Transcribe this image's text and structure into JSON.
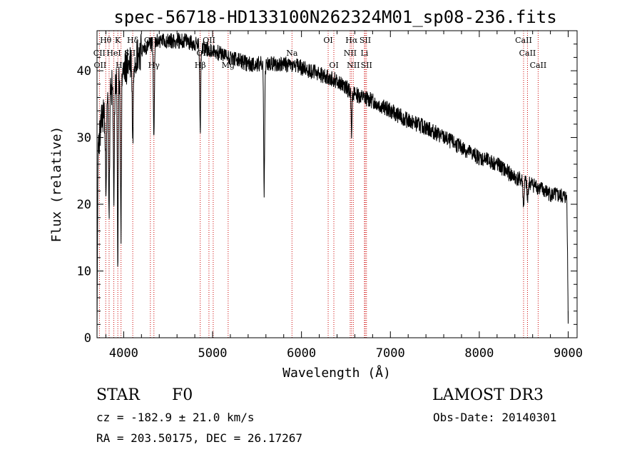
{
  "chart_data": {
    "type": "line",
    "title": "spec-56718-HD133100N262324M01_sp08-236.fits",
    "xlabel": "Wavelength (Å)",
    "ylabel": "Flux (relative)",
    "xlim": [
      3700,
      9100
    ],
    "ylim": [
      0,
      46
    ],
    "xticks": [
      4000,
      5000,
      6000,
      7000,
      8000,
      9000
    ],
    "xtick_labels": [
      "4000",
      "5000",
      "6000",
      "7000",
      "8000",
      "9000"
    ],
    "yticks": [
      0,
      10,
      20,
      30,
      40
    ],
    "ytick_labels": [
      "0",
      "10",
      "20",
      "30",
      "40"
    ],
    "continuum": [
      [
        3700,
        28
      ],
      [
        3800,
        36
      ],
      [
        3900,
        38
      ],
      [
        4000,
        40
      ],
      [
        4100,
        42
      ],
      [
        4200,
        43
      ],
      [
        4300,
        44
      ],
      [
        4400,
        44.5
      ],
      [
        4500,
        44.5
      ],
      [
        4600,
        44.5
      ],
      [
        4700,
        44.5
      ],
      [
        4800,
        44
      ],
      [
        4900,
        43.5
      ],
      [
        5000,
        43
      ],
      [
        5200,
        42
      ],
      [
        5400,
        41
      ],
      [
        5600,
        41
      ],
      [
        5800,
        41
      ],
      [
        6000,
        40.5
      ],
      [
        6200,
        39.5
      ],
      [
        6400,
        38.5
      ],
      [
        6600,
        36.5
      ],
      [
        6800,
        35.5
      ],
      [
        7000,
        34
      ],
      [
        7200,
        32.5
      ],
      [
        7400,
        31.5
      ],
      [
        7600,
        30
      ],
      [
        7800,
        28.5
      ],
      [
        8000,
        27
      ],
      [
        8200,
        26
      ],
      [
        8400,
        24
      ],
      [
        8600,
        23
      ],
      [
        8800,
        21.5
      ],
      [
        9000,
        21
      ]
    ],
    "absorption_features": [
      {
        "wl": 3800,
        "depth": 12,
        "width": 8
      },
      {
        "wl": 3836,
        "depth": 18,
        "width": 6
      },
      {
        "wl": 3889,
        "depth": 16,
        "width": 6
      },
      {
        "wl": 3934,
        "depth": 28,
        "width": 5
      },
      {
        "wl": 3969,
        "depth": 24,
        "width": 5
      },
      {
        "wl": 4102,
        "depth": 12,
        "width": 6
      },
      {
        "wl": 4340,
        "depth": 14,
        "width": 6
      },
      {
        "wl": 4861,
        "depth": 13,
        "width": 5
      },
      {
        "wl": 5580,
        "depth": 19,
        "width": 6
      },
      {
        "wl": 6563,
        "depth": 6,
        "width": 5
      },
      {
        "wl": 8498,
        "depth": 4,
        "width": 6
      },
      {
        "wl": 8542,
        "depth": 3,
        "width": 6
      }
    ],
    "series": [
      {
        "name": "flux",
        "noise_amplitude": 1.2,
        "start": 3700,
        "end": 9000
      }
    ],
    "line_markers": [
      {
        "label": "Hθ",
        "wl": 3798,
        "row": 0
      },
      {
        "label": "K",
        "wl": 3934,
        "row": 0
      },
      {
        "label": "Hδ",
        "wl": 4102,
        "row": 0
      },
      {
        "label": "OII",
        "wl": 4300,
        "row": 0
      },
      {
        "label": "OII",
        "wl": 4960,
        "row": 0
      },
      {
        "label": "OI",
        "wl": 6300,
        "row": 0
      },
      {
        "label": "Hα",
        "wl": 6563,
        "row": 0
      },
      {
        "label": "SII",
        "wl": 6717,
        "row": 0
      },
      {
        "label": "CaII",
        "wl": 8498,
        "row": 0
      },
      {
        "label": "CII",
        "wl": 3727,
        "row": 1
      },
      {
        "label": "HeI",
        "wl": 3889,
        "row": 1
      },
      {
        "label": "SII",
        "wl": 4070,
        "row": 1
      },
      {
        "label": "OIII",
        "wl": 4907,
        "row": 1
      },
      {
        "label": "Na",
        "wl": 5893,
        "row": 1
      },
      {
        "label": "NII",
        "wl": 6548,
        "row": 1
      },
      {
        "label": "Li",
        "wl": 6708,
        "row": 1
      },
      {
        "label": "CaII",
        "wl": 8542,
        "row": 1
      },
      {
        "label": "OII",
        "wl": 3735,
        "row": 2
      },
      {
        "label": "Hε",
        "wl": 3970,
        "row": 2
      },
      {
        "label": "Hγ",
        "wl": 4340,
        "row": 2
      },
      {
        "label": "Hβ",
        "wl": 4861,
        "row": 2
      },
      {
        "label": "Mg",
        "wl": 5175,
        "row": 2
      },
      {
        "label": "OI",
        "wl": 6364,
        "row": 2
      },
      {
        "label": "NII",
        "wl": 6583,
        "row": 2
      },
      {
        "label": "SII",
        "wl": 6731,
        "row": 2
      },
      {
        "label": "CaII",
        "wl": 8662,
        "row": 2
      }
    ],
    "marker_wavelengths": [
      3727,
      3798,
      3836,
      3889,
      3934,
      3970,
      4102,
      4300,
      4340,
      4861,
      4959,
      5007,
      5175,
      5893,
      6300,
      6364,
      6548,
      6563,
      6583,
      6708,
      6717,
      6731,
      8498,
      8542,
      8662
    ],
    "colors": {
      "spectrum": "#000000",
      "markers": "#cc0000",
      "axes": "#000000",
      "background": "#ffffff"
    }
  },
  "info": {
    "object_class": "STAR",
    "subclass": "F0",
    "survey": "LAMOST DR3",
    "redshift": "cz = -182.9 ± 21.0 km/s",
    "obs_date": "Obs-Date: 20140301",
    "coords": "RA = 203.50175, DEC =  26.17267"
  }
}
